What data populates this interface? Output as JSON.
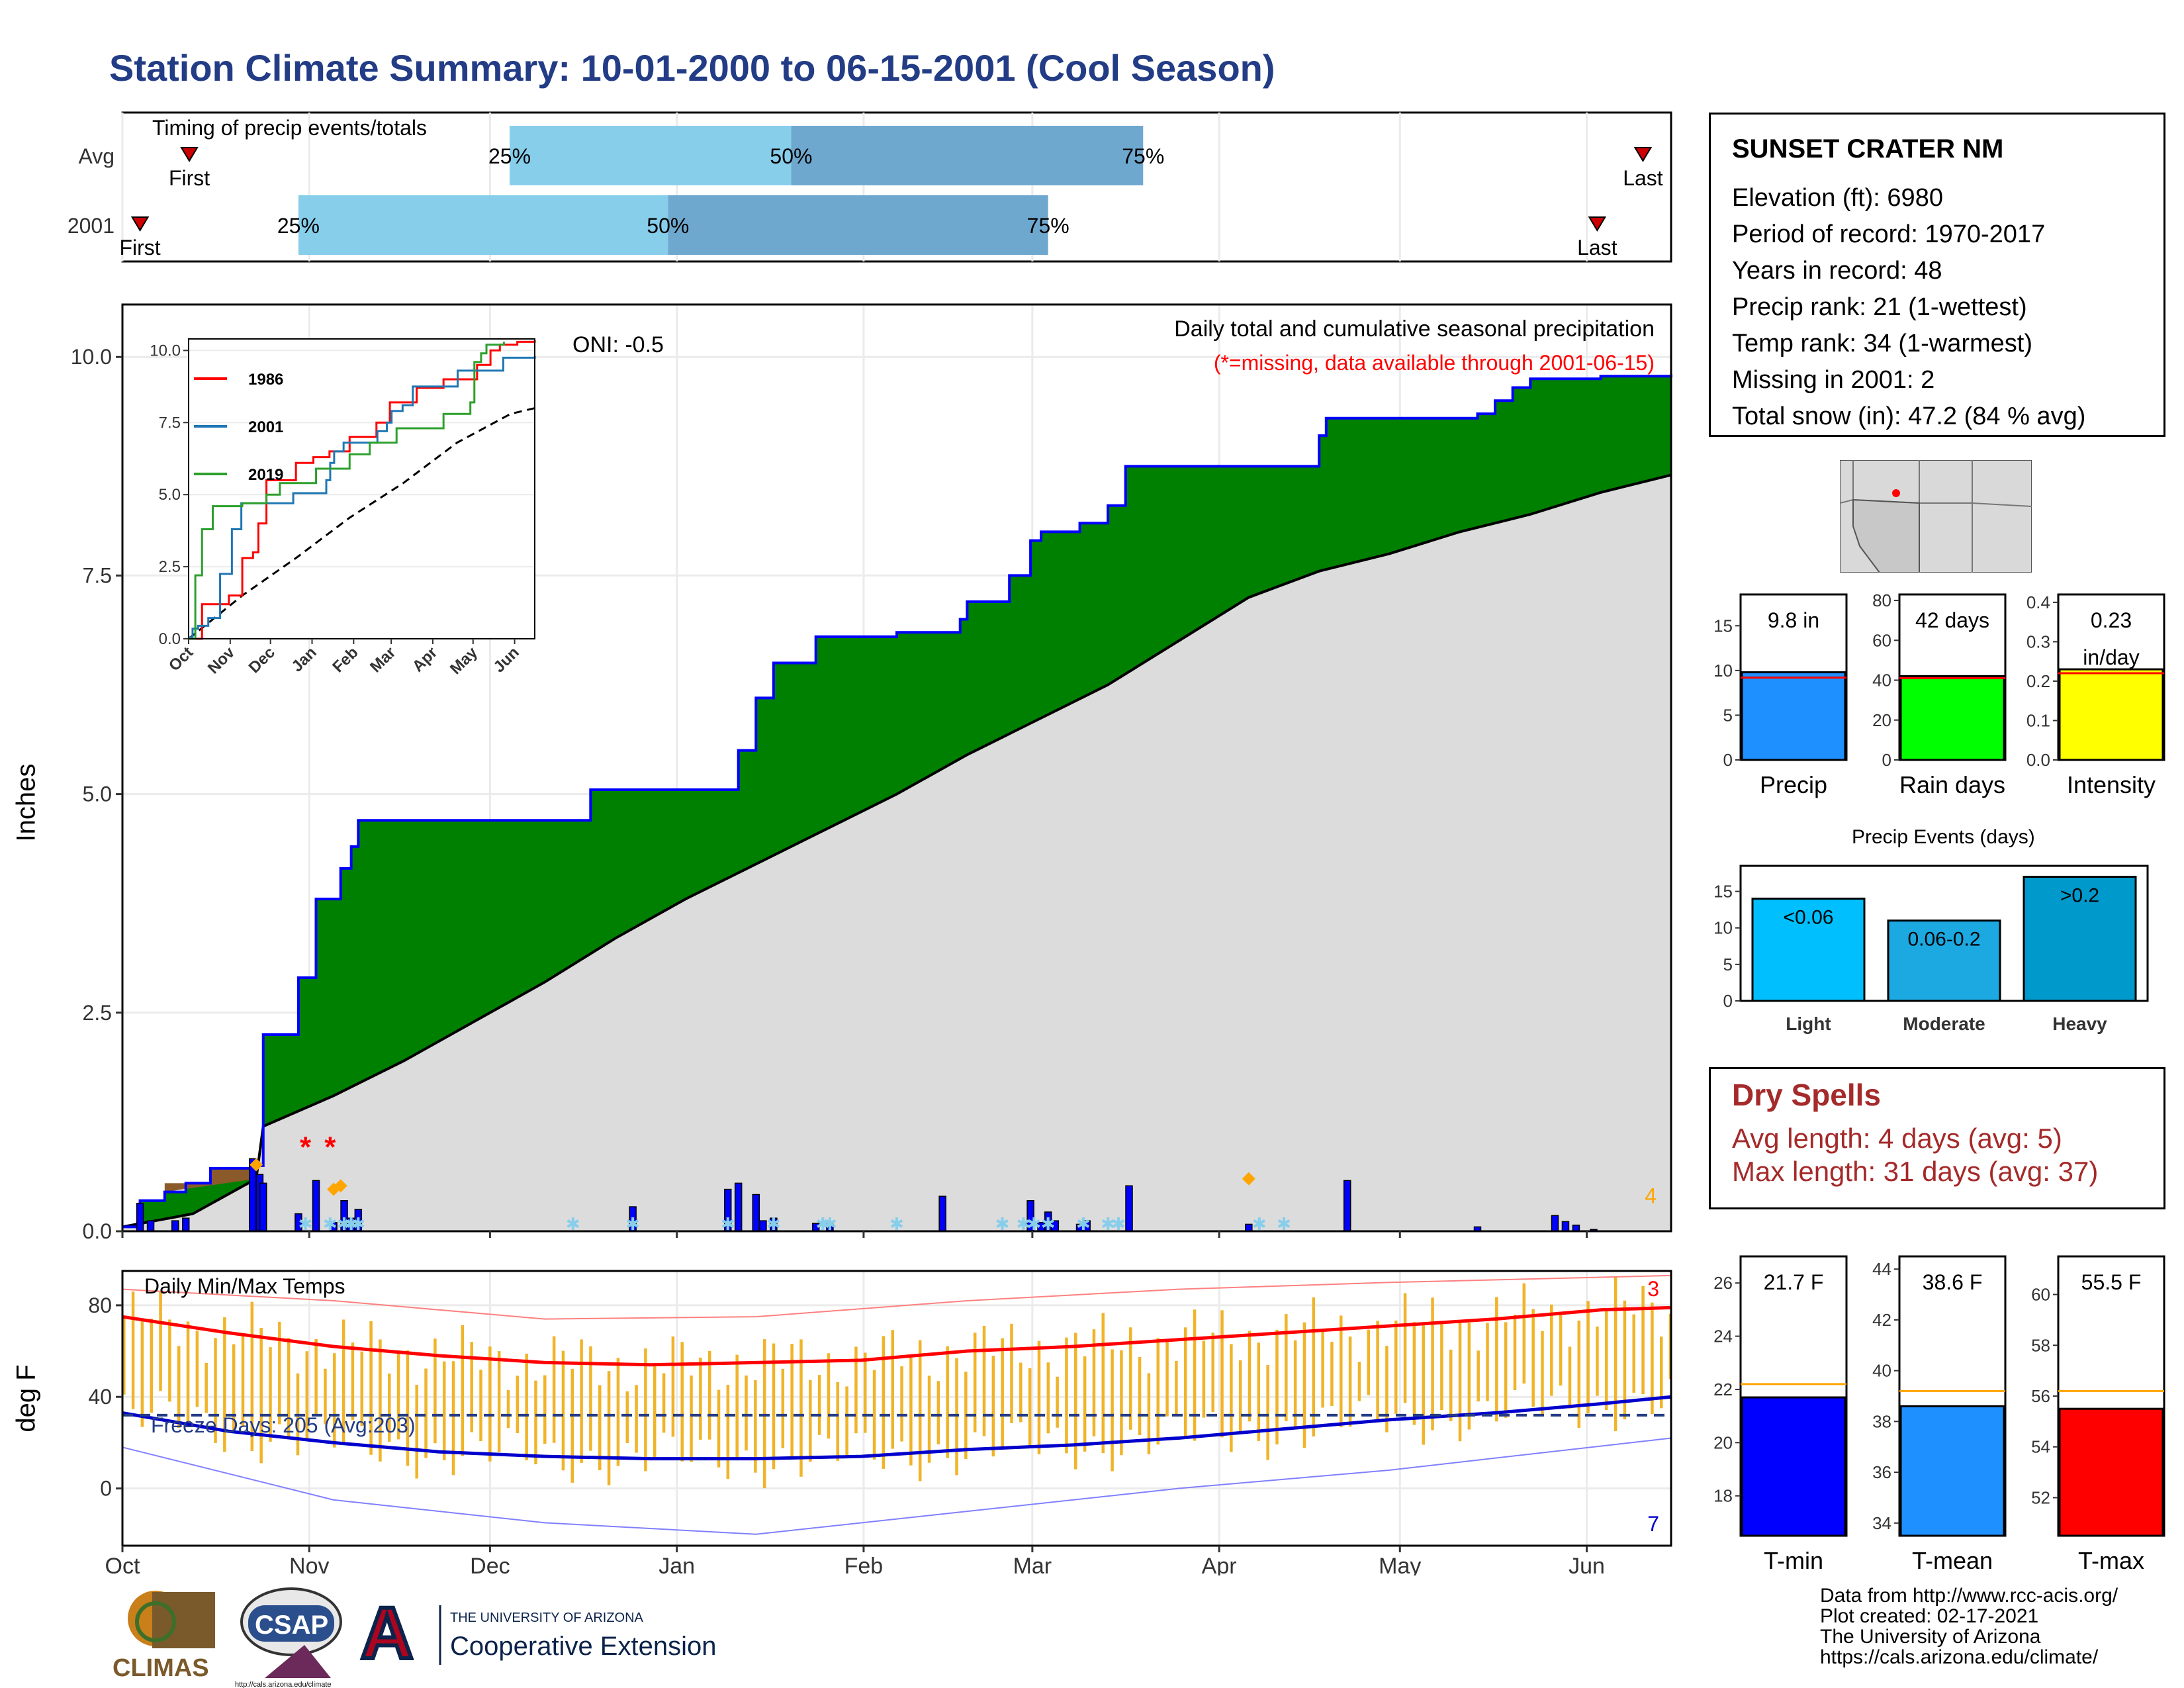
{
  "title": "Station Climate Summary: 10-01-2000 to 06-15-2001 (Cool Season)",
  "colors": {
    "title": "#233c86",
    "cum_2001": "#008000",
    "cum_avg": "#dcdcdc",
    "outline": "#0000ff",
    "missing": "#ff0000",
    "dry": "#a52a2a"
  },
  "timing": {
    "title": "Timing of precip events/totals",
    "rows": [
      {
        "label": "Avg",
        "first_day": 19,
        "first_label": "First",
        "p25": 110,
        "p50": 190,
        "p75": 290,
        "last_day": 432,
        "last_label": "Last",
        "p25_label": "25%",
        "p50_label": "50%",
        "p75_label": "75%"
      },
      {
        "label": "2001",
        "first_day": 5,
        "first_label": "First",
        "p25": 50,
        "p50": 155,
        "p75": 263,
        "last_day": 419,
        "last_label": "Last",
        "p25_label": "25%",
        "p50_label": "50%",
        "p75_label": "75%"
      }
    ]
  },
  "precip": {
    "ylabel": "Inches",
    "title": "Daily total and cumulative seasonal precipitation",
    "subtitle": "(*=missing, data available through 2001-06-15)",
    "oni": "ONI: -0.5",
    "corner_value": "4",
    "yticks": [
      "0.0",
      "2.5",
      "5.0",
      "7.5",
      "10.0"
    ],
    "ylim": [
      0,
      10.6
    ],
    "cum_2001_steps": [
      [
        0,
        0.05
      ],
      [
        5,
        0.35
      ],
      [
        12,
        0.45
      ],
      [
        18,
        0.55
      ],
      [
        25,
        0.72
      ],
      [
        38,
        0.75
      ],
      [
        40,
        2.25
      ],
      [
        50,
        2.9
      ],
      [
        55,
        3.8
      ],
      [
        62,
        4.15
      ],
      [
        65,
        4.4
      ],
      [
        67,
        4.7
      ],
      [
        133,
        5.05
      ],
      [
        175,
        5.5
      ],
      [
        180,
        6.1
      ],
      [
        185,
        6.5
      ],
      [
        197,
        6.8
      ],
      [
        220,
        6.85
      ],
      [
        238,
        7.0
      ],
      [
        240,
        7.2
      ],
      [
        252,
        7.5
      ],
      [
        258,
        7.9
      ],
      [
        261,
        8.0
      ],
      [
        272,
        8.1
      ],
      [
        280,
        8.3
      ],
      [
        285,
        8.75
      ],
      [
        340,
        9.1
      ],
      [
        342,
        9.3
      ],
      [
        385,
        9.35
      ],
      [
        390,
        9.5
      ],
      [
        395,
        9.65
      ],
      [
        400,
        9.75
      ],
      [
        420,
        9.78
      ],
      [
        440,
        9.8
      ]
    ],
    "cum_avg_points": [
      [
        0,
        0.05
      ],
      [
        20,
        0.2
      ],
      [
        38,
        0.6
      ],
      [
        40,
        1.2
      ],
      [
        60,
        1.55
      ],
      [
        80,
        1.95
      ],
      [
        100,
        2.4
      ],
      [
        120,
        2.85
      ],
      [
        140,
        3.35
      ],
      [
        160,
        3.8
      ],
      [
        180,
        4.2
      ],
      [
        200,
        4.6
      ],
      [
        220,
        5.0
      ],
      [
        240,
        5.45
      ],
      [
        260,
        5.85
      ],
      [
        280,
        6.25
      ],
      [
        300,
        6.75
      ],
      [
        320,
        7.25
      ],
      [
        340,
        7.55
      ],
      [
        360,
        7.75
      ],
      [
        380,
        8.0
      ],
      [
        400,
        8.2
      ],
      [
        420,
        8.45
      ],
      [
        440,
        8.65
      ]
    ],
    "daily_bars": [
      [
        5,
        0.32
      ],
      [
        8,
        0.12
      ],
      [
        15,
        0.12
      ],
      [
        18,
        0.15
      ],
      [
        37,
        0.83
      ],
      [
        39,
        0.65
      ],
      [
        40,
        0.55
      ],
      [
        50,
        0.2
      ],
      [
        55,
        0.58
      ],
      [
        60,
        0.1
      ],
      [
        63,
        0.35
      ],
      [
        65,
        0.15
      ],
      [
        67,
        0.25
      ],
      [
        145,
        0.28
      ],
      [
        172,
        0.48
      ],
      [
        175,
        0.55
      ],
      [
        180,
        0.42
      ],
      [
        182,
        0.12
      ],
      [
        185,
        0.15
      ],
      [
        197,
        0.09
      ],
      [
        201,
        0.08
      ],
      [
        233,
        0.4
      ],
      [
        258,
        0.35
      ],
      [
        261,
        0.1
      ],
      [
        263,
        0.22
      ],
      [
        265,
        0.12
      ],
      [
        272,
        0.08
      ],
      [
        274,
        0.12
      ],
      [
        286,
        0.52
      ],
      [
        320,
        0.08
      ],
      [
        348,
        0.58
      ],
      [
        385,
        0.05
      ],
      [
        407,
        0.18
      ],
      [
        410,
        0.11
      ],
      [
        413,
        0.07
      ],
      [
        418,
        0.02
      ]
    ],
    "missing_days": [
      52,
      59
    ],
    "snow_days": [
      52,
      59,
      63,
      65,
      67,
      128,
      145,
      172,
      185,
      199,
      201,
      220,
      250,
      256,
      259,
      263,
      273,
      280,
      283,
      323,
      330
    ],
    "orange_markers": [
      [
        38,
        0.76
      ],
      [
        60,
        0.48
      ],
      [
        62,
        0.52
      ],
      [
        320,
        0.6
      ]
    ]
  },
  "inset": {
    "yticks": [
      "0.0",
      "2.5",
      "5.0",
      "7.5",
      "10.0"
    ],
    "xticks": [
      "Oct",
      "Nov",
      "Dec",
      "Jan",
      "Feb",
      "Mar",
      "Apr",
      "May",
      "Jun"
    ],
    "series": [
      {
        "name": "1986",
        "color": "#ff0000",
        "steps": [
          [
            0,
            0
          ],
          [
            10,
            1.2
          ],
          [
            30,
            1.5
          ],
          [
            40,
            2.8
          ],
          [
            48,
            3.0
          ],
          [
            52,
            4.0
          ],
          [
            58,
            5.5
          ],
          [
            70,
            5.5
          ],
          [
            80,
            6.1
          ],
          [
            93,
            6.3
          ],
          [
            105,
            6.5
          ],
          [
            120,
            7.0
          ],
          [
            140,
            7.5
          ],
          [
            150,
            8.2
          ],
          [
            170,
            8.7
          ],
          [
            190,
            9.0
          ],
          [
            215,
            9.5
          ],
          [
            225,
            10.0
          ],
          [
            232,
            10.2
          ],
          [
            245,
            10.3
          ],
          [
            258,
            10.35
          ]
        ]
      },
      {
        "name": "2001",
        "color": "#1f77b4",
        "steps": [
          [
            0,
            0.05
          ],
          [
            5,
            0.35
          ],
          [
            12,
            0.45
          ],
          [
            25,
            0.72
          ],
          [
            40,
            2.25
          ],
          [
            55,
            3.8
          ],
          [
            67,
            4.7
          ],
          [
            133,
            5.05
          ],
          [
            175,
            5.5
          ],
          [
            180,
            6.1
          ],
          [
            185,
            6.5
          ],
          [
            197,
            6.8
          ],
          [
            240,
            7.2
          ],
          [
            252,
            7.5
          ],
          [
            258,
            7.9
          ],
          [
            272,
            8.1
          ],
          [
            285,
            8.75
          ],
          [
            342,
            9.3
          ],
          [
            400,
            9.75
          ],
          [
            440,
            9.8
          ]
        ]
      },
      {
        "name": "2019",
        "color": "#2ca02c",
        "steps": [
          [
            0,
            0
          ],
          [
            5,
            2.2
          ],
          [
            10,
            3.8
          ],
          [
            18,
            4.6
          ],
          [
            40,
            4.7
          ],
          [
            58,
            5.0
          ],
          [
            68,
            5.4
          ],
          [
            95,
            5.9
          ],
          [
            120,
            6.4
          ],
          [
            135,
            6.8
          ],
          [
            155,
            7.3
          ],
          [
            190,
            7.8
          ],
          [
            210,
            8.2
          ],
          [
            213,
            9.6
          ],
          [
            218,
            9.9
          ],
          [
            222,
            10.2
          ],
          [
            235,
            10.3
          ]
        ]
      }
    ],
    "average_points": [
      [
        0,
        0
      ],
      [
        40,
        1.5
      ],
      [
        80,
        2.8
      ],
      [
        120,
        4.2
      ],
      [
        160,
        5.4
      ],
      [
        200,
        6.8
      ],
      [
        240,
        7.8
      ],
      [
        258,
        8.0
      ]
    ]
  },
  "temps": {
    "title": "Daily Min/Max Temps",
    "ylabel": "deg F",
    "freeze_label": "Freeze Days: 205 (Avg:203)",
    "freeze_line": 32,
    "max_records": "3",
    "min_records": "7",
    "yticks": [
      "0",
      "40",
      "80"
    ],
    "ylim": [
      -25,
      95
    ],
    "avg_max_points": [
      [
        0,
        75
      ],
      [
        30,
        68
      ],
      [
        60,
        62
      ],
      [
        90,
        58
      ],
      [
        120,
        55
      ],
      [
        150,
        54
      ],
      [
        180,
        55
      ],
      [
        210,
        56
      ],
      [
        240,
        60
      ],
      [
        270,
        62
      ],
      [
        300,
        65
      ],
      [
        330,
        68
      ],
      [
        360,
        71
      ],
      [
        390,
        74
      ],
      [
        420,
        78
      ],
      [
        440,
        79
      ]
    ],
    "avg_min_points": [
      [
        0,
        33
      ],
      [
        30,
        25
      ],
      [
        60,
        20
      ],
      [
        90,
        16
      ],
      [
        120,
        14
      ],
      [
        150,
        13
      ],
      [
        180,
        13
      ],
      [
        210,
        14
      ],
      [
        240,
        17
      ],
      [
        270,
        19
      ],
      [
        300,
        22
      ],
      [
        330,
        26
      ],
      [
        360,
        30
      ],
      [
        390,
        33
      ],
      [
        420,
        37
      ],
      [
        440,
        40
      ]
    ],
    "record_max_points": [
      [
        0,
        87
      ],
      [
        60,
        82
      ],
      [
        120,
        74
      ],
      [
        180,
        75
      ],
      [
        240,
        82
      ],
      [
        300,
        87
      ],
      [
        360,
        90
      ],
      [
        440,
        93
      ]
    ],
    "record_min_points": [
      [
        0,
        18
      ],
      [
        60,
        -5
      ],
      [
        120,
        -15
      ],
      [
        180,
        -20
      ],
      [
        240,
        -10
      ],
      [
        300,
        0
      ],
      [
        360,
        8
      ],
      [
        440,
        22
      ]
    ]
  },
  "x_axis": {
    "labels": [
      "Oct",
      "Nov",
      "Dec",
      "Jan",
      "Feb",
      "Mar",
      "Apr",
      "May",
      "Jun"
    ],
    "days": [
      0,
      31,
      61,
      92,
      123,
      151,
      182,
      212,
      243
    ]
  },
  "station": {
    "name": "SUNSET CRATER NM",
    "lines": [
      "Elevation (ft): 6980",
      "Period of record: 1970-2017",
      "Years in record: 48",
      "Precip rank: 21 (1-wettest)",
      "Temp rank: 34 (1-warmest)",
      "Missing in 2001: 2",
      "Total snow (in): 47.2 (84 % avg)"
    ]
  },
  "summary_bars": [
    {
      "label": "Precip",
      "value_label": "9.8 in",
      "value": 9.8,
      "avg": 9.2,
      "color": "#1e90ff",
      "ymax": 18.5,
      "yticks": [
        "0",
        "5",
        "10",
        "15"
      ],
      "tick_vals": [
        0,
        5,
        10,
        15
      ]
    },
    {
      "label": "Rain days",
      "value_label": "42 days",
      "value": 42,
      "avg": 41,
      "color": "#00ff00",
      "ymax": 83,
      "yticks": [
        "0",
        "20",
        "40",
        "60",
        "80"
      ],
      "tick_vals": [
        0,
        20,
        40,
        60,
        80
      ]
    },
    {
      "label": "Intensity",
      "value_label": "0.23 in/day",
      "value_label_lines": [
        "0.23",
        "in/day"
      ],
      "value": 0.23,
      "avg": 0.22,
      "color": "#ffff00",
      "ymax": 0.42,
      "yticks": [
        "0.0",
        "0.1",
        "0.2",
        "0.3",
        "0.4"
      ],
      "tick_vals": [
        0,
        0.1,
        0.2,
        0.3,
        0.4
      ]
    }
  ],
  "events": {
    "title": "Precip Events (days)",
    "yticks": [
      "0",
      "5",
      "10",
      "15"
    ],
    "categories": [
      "Light",
      "Moderate",
      "Heavy"
    ],
    "bar_labels": [
      "<0.06",
      "0.06-0.2",
      ">0.2"
    ],
    "values": [
      14,
      11,
      17
    ],
    "colors": [
      "#00bfff",
      "#1ca8e0",
      "#0099cc"
    ]
  },
  "dry_spells": {
    "title": "Dry Spells",
    "lines": [
      "Avg length: 4 days (avg: 5)",
      "Max length: 31 days (avg: 37)"
    ]
  },
  "temp_bars": [
    {
      "label": "T-min",
      "value_label": "21.7 F",
      "value": 21.7,
      "avg": 22.2,
      "color": "#0000ff",
      "ymin": 16.5,
      "ymax": 27,
      "yticks": [
        "18",
        "20",
        "22",
        "24",
        "26"
      ],
      "tick_vals": [
        18,
        20,
        22,
        24,
        26
      ]
    },
    {
      "label": "T-mean",
      "value_label": "38.6 F",
      "value": 38.6,
      "avg": 39.2,
      "color": "#1e90ff",
      "ymin": 33.5,
      "ymax": 44.5,
      "yticks": [
        "34",
        "36",
        "38",
        "40",
        "42",
        "44"
      ],
      "tick_vals": [
        34,
        36,
        38,
        40,
        42,
        44
      ]
    },
    {
      "label": "T-max",
      "value_label": "55.5 F",
      "value": 55.5,
      "avg": 56.2,
      "color": "#ff0000",
      "ymin": 50.5,
      "ymax": 61.5,
      "yticks": [
        "52",
        "54",
        "56",
        "58",
        "60"
      ],
      "tick_vals": [
        52,
        54,
        56,
        58,
        60
      ]
    }
  ],
  "logos": {
    "climas": "CLIMAS",
    "csap": "CSAP",
    "csap_url": "http://cals.arizona.edu/climate",
    "ua_small": "THE UNIVERSITY OF ARIZONA",
    "ua_ext": "Cooperative Extension"
  },
  "footer": [
    "Data from http://www.rcc-acis.org/",
    "Plot created: 02-17-2021",
    "The University of Arizona",
    "https://cals.arizona.edu/climate/"
  ],
  "chart_data": [
    {
      "type": "bar",
      "title": "Timing of precip events/totals",
      "categories": [
        "Avg",
        "2001"
      ],
      "series": [
        {
          "values": [
            [
              110,
              190
            ],
            [
              50,
              155
            ]
          ]
        },
        {
          "values": [
            [
              190,
              290
            ],
            [
              155,
              263
            ]
          ]
        }
      ]
    },
    {
      "type": "area",
      "title": "Daily total and cumulative seasonal precipitation",
      "ylabel": "Inches",
      "ylim": [
        0,
        10.6
      ],
      "x": [
        "Oct",
        "Nov",
        "Dec",
        "Jan",
        "Feb",
        "Mar",
        "Apr",
        "May",
        "Jun"
      ]
    },
    {
      "type": "line",
      "title": "Daily Min/Max Temps",
      "ylabel": "deg F",
      "ylim": [
        -25,
        95
      ]
    },
    {
      "type": "bar",
      "title": "Precip Events (days)",
      "categories": [
        "Light",
        "Moderate",
        "Heavy"
      ],
      "values": [
        14,
        11,
        17
      ]
    }
  ]
}
